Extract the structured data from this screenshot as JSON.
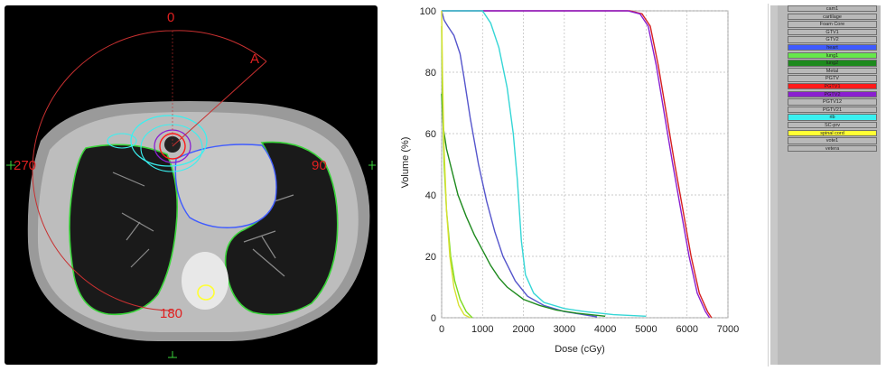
{
  "ct_view": {
    "angle_labels": {
      "top": "0",
      "right": "90",
      "bottom": "180",
      "left": "270"
    }
  },
  "chart_data": {
    "type": "line",
    "xlabel": "Dose (cGy)",
    "ylabel": "Volume (%)",
    "xlim": [
      0,
      7000
    ],
    "ylim": [
      0,
      100
    ],
    "xticks": [
      "0",
      "1000",
      "2000",
      "3000",
      "4000",
      "5000",
      "6000",
      "7000"
    ],
    "yticks": [
      "0",
      "20",
      "40",
      "60",
      "80",
      "100"
    ],
    "grid": true,
    "series": [
      {
        "color": "#d62020",
        "x": [
          0,
          4600,
          4900,
          5100,
          5300,
          5500,
          5700,
          5900,
          6100,
          6300,
          6500,
          6600
        ],
        "y": [
          100,
          100,
          99,
          95,
          82,
          66,
          50,
          35,
          20,
          8,
          2,
          0
        ]
      },
      {
        "color": "#8a1fd0",
        "x": [
          0,
          4550,
          4850,
          5050,
          5250,
          5450,
          5650,
          5850,
          6050,
          6250,
          6450,
          6550
        ],
        "y": [
          100,
          100,
          99,
          95,
          82,
          66,
          50,
          35,
          20,
          8,
          2,
          0
        ]
      },
      {
        "color": "#35d6d6",
        "x": [
          0,
          1000,
          1200,
          1400,
          1600,
          1750,
          1850,
          1950,
          2050,
          2250,
          2500,
          3000,
          3500,
          4200,
          5000
        ],
        "y": [
          100,
          100,
          96,
          88,
          75,
          60,
          45,
          25,
          14,
          8,
          5,
          3,
          2,
          1,
          0.5
        ]
      },
      {
        "color": "#5555cc",
        "x": [
          0,
          60,
          150,
          300,
          450,
          550,
          700,
          900,
          1100,
          1300,
          1500,
          1800,
          2100,
          2500,
          3000,
          3800
        ],
        "y": [
          100,
          97,
          95,
          92,
          86,
          78,
          65,
          50,
          38,
          28,
          20,
          12,
          7,
          4,
          2,
          0.3
        ]
      },
      {
        "color": "#1e8a1e",
        "x": [
          0,
          40,
          120,
          250,
          400,
          600,
          800,
          1000,
          1200,
          1400,
          1600,
          1800,
          2000,
          2400,
          2800,
          3300,
          4000
        ],
        "y": [
          73,
          62,
          55,
          48,
          40,
          33,
          27,
          22,
          17,
          13,
          10,
          8,
          6,
          4,
          2.5,
          1.5,
          0.5
        ]
      },
      {
        "color": "#7ddc1e",
        "x": [
          0,
          20,
          60,
          120,
          220,
          320,
          450,
          600,
          750
        ],
        "y": [
          95,
          72,
          50,
          35,
          20,
          12,
          6,
          2,
          0
        ]
      },
      {
        "color": "#d8e030",
        "x": [
          0,
          20,
          60,
          120,
          200,
          300,
          420,
          550,
          700
        ],
        "y": [
          100,
          80,
          55,
          35,
          20,
          10,
          4,
          1,
          0
        ]
      }
    ]
  },
  "roi_list": [
    {
      "label": "cam1",
      "color": "#b9b9b9"
    },
    {
      "label": "cartilage",
      "color": "#b9b9b9"
    },
    {
      "label": "Foam Core",
      "color": "#b9b9b9"
    },
    {
      "label": "GTV1",
      "color": "#b9b9b9"
    },
    {
      "label": "GTV2",
      "color": "#b9b9b9"
    },
    {
      "label": "heart",
      "color": "#3f5bff"
    },
    {
      "label": "lung1",
      "color": "#66e84a"
    },
    {
      "label": "lung2",
      "color": "#1e8a1e"
    },
    {
      "label": "Metal",
      "color": "#b9b9b9"
    },
    {
      "label": "PGTV",
      "color": "#b9b9b9"
    },
    {
      "label": "PGTV1",
      "color": "#ff1a1a"
    },
    {
      "label": "PGTV2",
      "color": "#8a1fd0"
    },
    {
      "label": "PGTV12",
      "color": "#b9b9b9"
    },
    {
      "label": "PGTV21",
      "color": "#b9b9b9"
    },
    {
      "label": "rib",
      "color": "#39f0f0"
    },
    {
      "label": "SC-prv",
      "color": "#b9b9b9"
    },
    {
      "label": "spinal cord",
      "color": "#ffff33"
    },
    {
      "label": "vote1",
      "color": "#b9b9b9"
    },
    {
      "label": "vetera",
      "color": "#b9b9b9"
    }
  ]
}
